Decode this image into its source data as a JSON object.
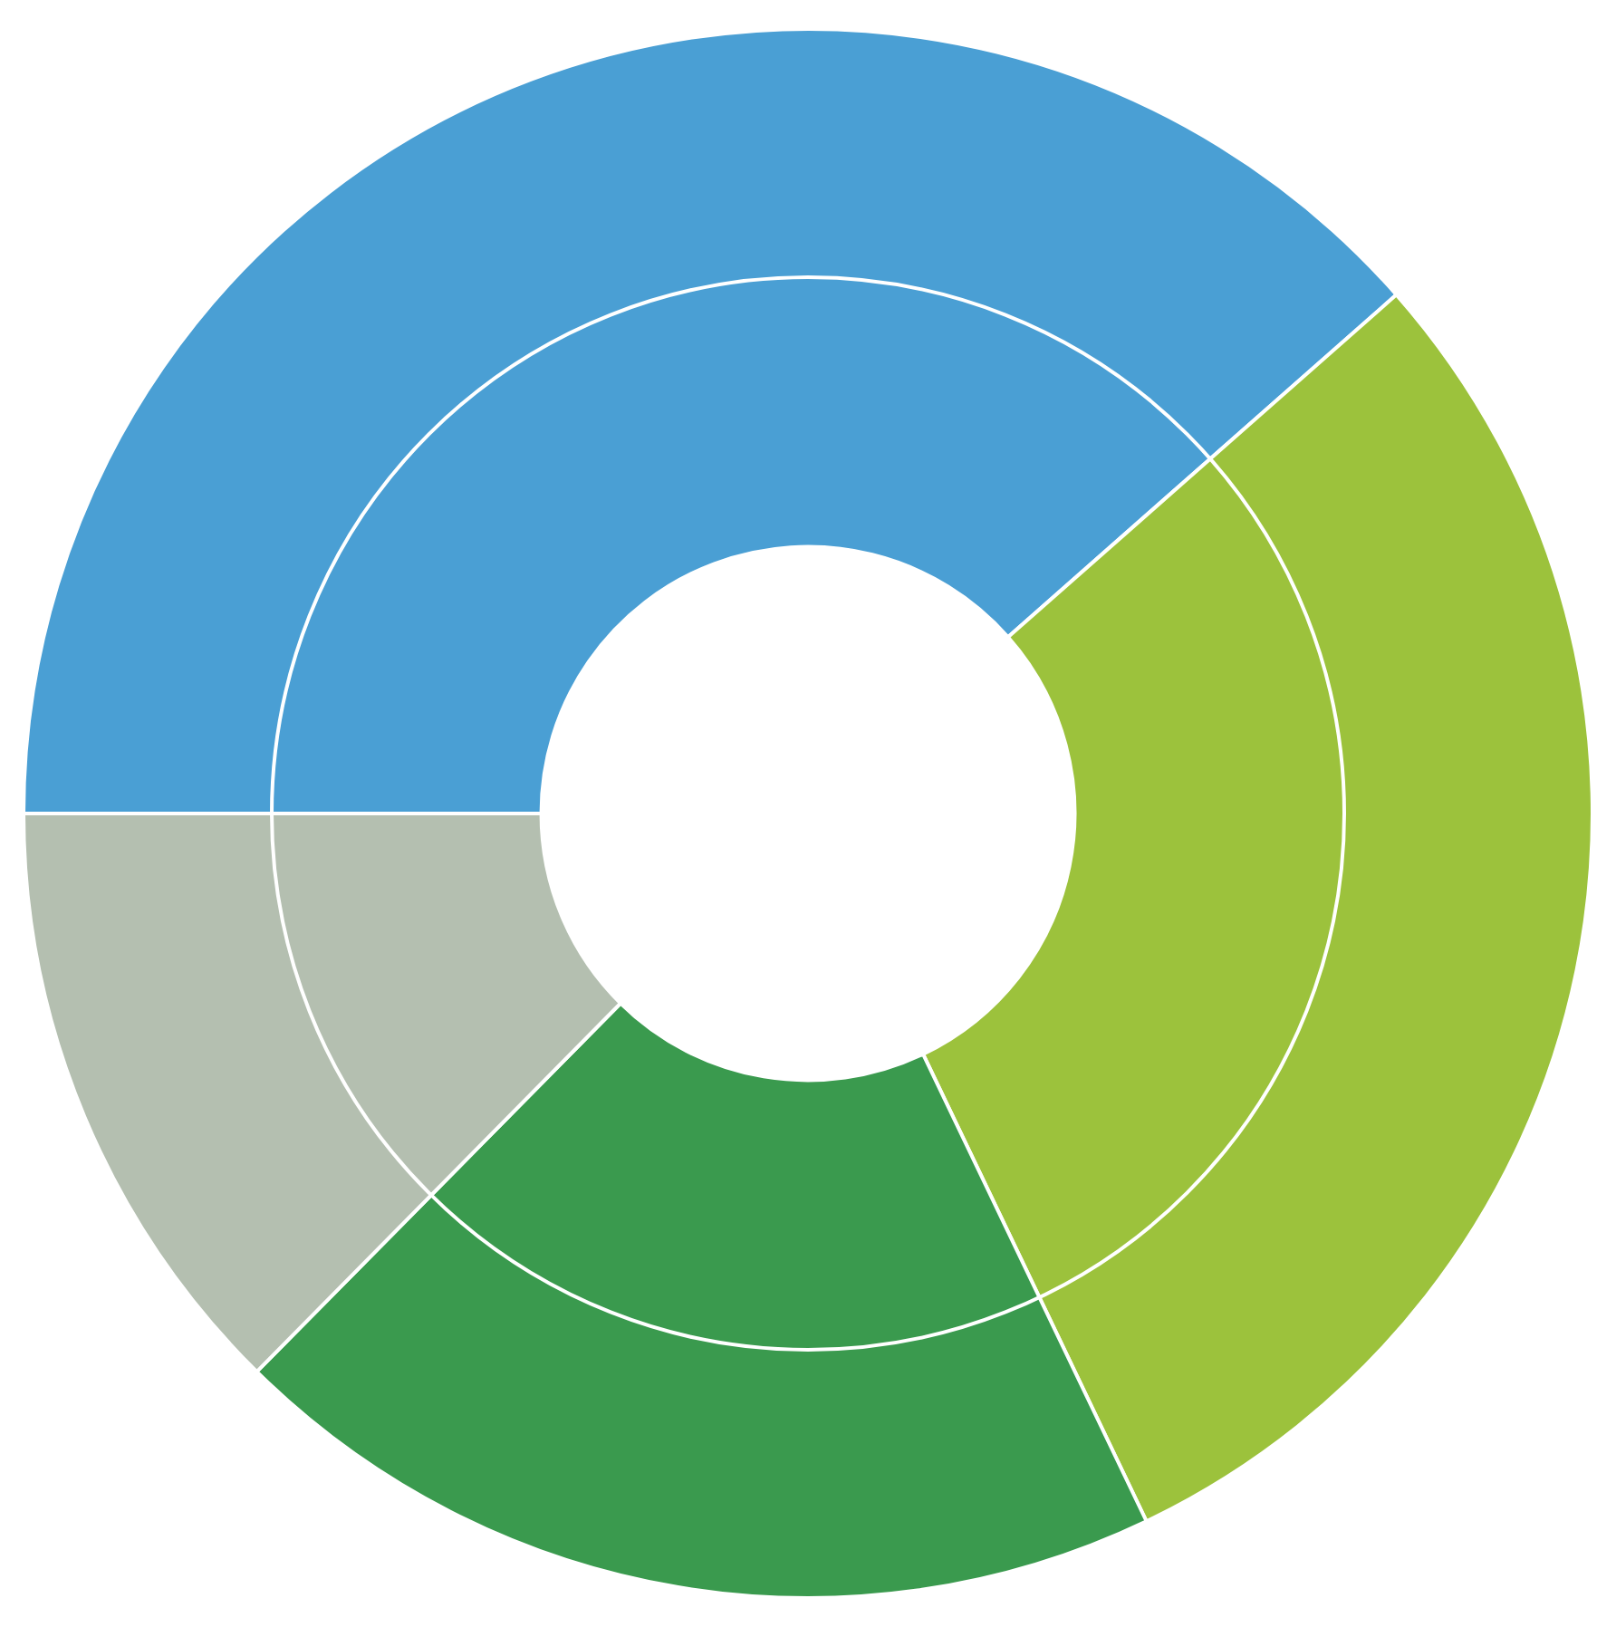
{
  "chart_data": {
    "type": "donut",
    "categories": [
      null,
      null,
      null,
      null
    ],
    "values": [
      38.5,
      29.4,
      19.5,
      12.6
    ],
    "colors": [
      "#4a9fd4",
      "#9cc23c",
      "#3a9a4e",
      "#b4bfb0"
    ],
    "legend": false
  }
}
